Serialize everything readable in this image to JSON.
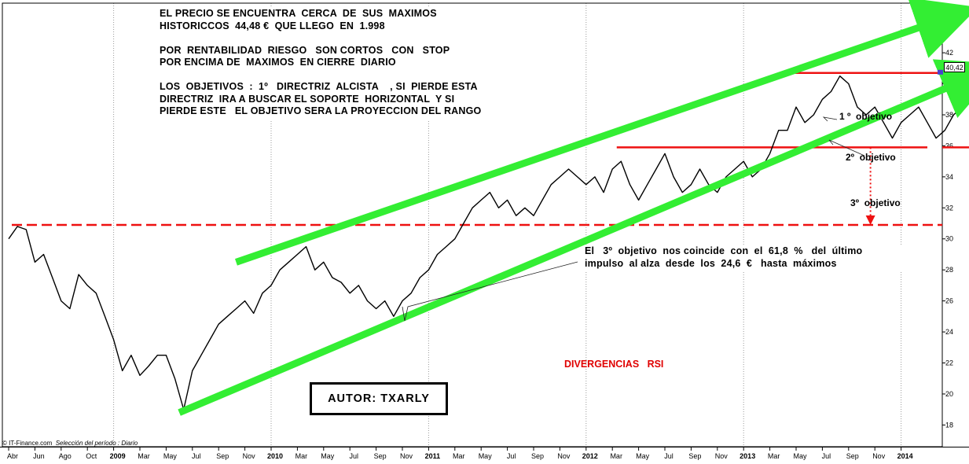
{
  "chart_data": {
    "type": "line",
    "title": "",
    "xlabel": "",
    "ylabel": "",
    "ylim": [
      16.6,
      45.2
    ],
    "y_axis_side": "right",
    "y_ticks": [
      18,
      20,
      22,
      24,
      26,
      28,
      30,
      32,
      34,
      36,
      38,
      40,
      42,
      44
    ],
    "x_ticks": [
      {
        "label": "Abr",
        "bold": false
      },
      {
        "label": "Jun",
        "bold": false
      },
      {
        "label": "Ago",
        "bold": false
      },
      {
        "label": "Oct",
        "bold": false
      },
      {
        "label": "2009",
        "bold": true
      },
      {
        "label": "Mar",
        "bold": false
      },
      {
        "label": "May",
        "bold": false
      },
      {
        "label": "Jul",
        "bold": false
      },
      {
        "label": "Sep",
        "bold": false
      },
      {
        "label": "Nov",
        "bold": false
      },
      {
        "label": "2010",
        "bold": true
      },
      {
        "label": "Mar",
        "bold": false
      },
      {
        "label": "May",
        "bold": false
      },
      {
        "label": "Jul",
        "bold": false
      },
      {
        "label": "Sep",
        "bold": false
      },
      {
        "label": "Nov",
        "bold": false
      },
      {
        "label": "2011",
        "bold": true
      },
      {
        "label": "Mar",
        "bold": false
      },
      {
        "label": "May",
        "bold": false
      },
      {
        "label": "Jul",
        "bold": false
      },
      {
        "label": "Sep",
        "bold": false
      },
      {
        "label": "Nov",
        "bold": false
      },
      {
        "label": "2012",
        "bold": true
      },
      {
        "label": "Mar",
        "bold": false
      },
      {
        "label": "May",
        "bold": false
      },
      {
        "label": "Jul",
        "bold": false
      },
      {
        "label": "Sep",
        "bold": false
      },
      {
        "label": "Nov",
        "bold": false
      },
      {
        "label": "2013",
        "bold": true
      },
      {
        "label": "Mar",
        "bold": false
      },
      {
        "label": "May",
        "bold": false
      },
      {
        "label": "Jul",
        "bold": false
      },
      {
        "label": "Sep",
        "bold": false
      },
      {
        "label": "Nov",
        "bold": false
      },
      {
        "label": "2014",
        "bold": true
      }
    ],
    "grid": "vertical dotted lines at year starts",
    "price_series": {
      "name": "",
      "color": "#000000",
      "points": [
        [
          0,
          30.0
        ],
        [
          1,
          30.8
        ],
        [
          2,
          30.6
        ],
        [
          3,
          28.5
        ],
        [
          4,
          29.0
        ],
        [
          5,
          27.5
        ],
        [
          6,
          26.0
        ],
        [
          7,
          25.5
        ],
        [
          8,
          27.7
        ],
        [
          9,
          27.0
        ],
        [
          10,
          26.5
        ],
        [
          11,
          25.0
        ],
        [
          12,
          23.5
        ],
        [
          13,
          21.5
        ],
        [
          14,
          22.5
        ],
        [
          15,
          21.2
        ],
        [
          16,
          21.8
        ],
        [
          17,
          22.5
        ],
        [
          18,
          22.5
        ],
        [
          19,
          21.0
        ],
        [
          20,
          19.0
        ],
        [
          21,
          21.5
        ],
        [
          22,
          22.5
        ],
        [
          23,
          23.5
        ],
        [
          24,
          24.5
        ],
        [
          25,
          25.0
        ],
        [
          26,
          25.5
        ],
        [
          27,
          26.0
        ],
        [
          28,
          25.2
        ],
        [
          29,
          26.5
        ],
        [
          30,
          27.0
        ],
        [
          31,
          28.0
        ],
        [
          32,
          28.5
        ],
        [
          33,
          29.0
        ],
        [
          34,
          29.5
        ],
        [
          35,
          28.0
        ],
        [
          36,
          28.5
        ],
        [
          37,
          27.5
        ],
        [
          38,
          27.2
        ],
        [
          39,
          26.5
        ],
        [
          40,
          27.0
        ],
        [
          41,
          26.0
        ],
        [
          42,
          25.5
        ],
        [
          43,
          26.0
        ],
        [
          44,
          25.0
        ],
        [
          45,
          26.0
        ],
        [
          46,
          26.5
        ],
        [
          47,
          27.5
        ],
        [
          48,
          28.0
        ],
        [
          49,
          29.0
        ],
        [
          50,
          29.5
        ],
        [
          51,
          30.0
        ],
        [
          52,
          31.0
        ],
        [
          53,
          32.0
        ],
        [
          54,
          32.5
        ],
        [
          55,
          33.0
        ],
        [
          56,
          32.0
        ],
        [
          57,
          32.5
        ],
        [
          58,
          31.5
        ],
        [
          59,
          32.0
        ],
        [
          60,
          31.5
        ],
        [
          61,
          32.5
        ],
        [
          62,
          33.5
        ],
        [
          63,
          34.0
        ],
        [
          64,
          34.5
        ],
        [
          65,
          34.0
        ],
        [
          66,
          33.5
        ],
        [
          67,
          34.0
        ],
        [
          68,
          33.0
        ],
        [
          69,
          34.5
        ],
        [
          70,
          35.0
        ],
        [
          71,
          33.5
        ],
        [
          72,
          32.5
        ],
        [
          73,
          33.5
        ],
        [
          74,
          34.5
        ],
        [
          75,
          35.5
        ],
        [
          76,
          34.0
        ],
        [
          77,
          33.0
        ],
        [
          78,
          33.5
        ],
        [
          79,
          34.5
        ],
        [
          80,
          33.5
        ],
        [
          81,
          33.0
        ],
        [
          82,
          34.0
        ],
        [
          83,
          34.5
        ],
        [
          84,
          35.0
        ],
        [
          85,
          34.0
        ],
        [
          86,
          34.5
        ],
        [
          87,
          35.5
        ],
        [
          88,
          37.0
        ],
        [
          89,
          37.0
        ],
        [
          90,
          38.5
        ],
        [
          91,
          37.5
        ],
        [
          92,
          38.0
        ],
        [
          93,
          39.0
        ],
        [
          94,
          39.5
        ],
        [
          95,
          40.5
        ],
        [
          96,
          40.0
        ],
        [
          97,
          38.5
        ],
        [
          98,
          38.0
        ],
        [
          99,
          38.5
        ],
        [
          100,
          37.5
        ],
        [
          101,
          36.5
        ],
        [
          102,
          37.5
        ],
        [
          103,
          38.0
        ],
        [
          104,
          38.5
        ],
        [
          105,
          37.5
        ],
        [
          106,
          36.5
        ],
        [
          107,
          37.0
        ],
        [
          108,
          38.0
        ],
        [
          109,
          38.5
        ],
        [
          110,
          39.0
        ],
        [
          111,
          39.5
        ],
        [
          112,
          40.42
        ]
      ]
    },
    "series": [
      {
        "kind": "trendline",
        "color": "#33ee33",
        "from": [
          26.0,
          28.5
        ],
        "to": [
          107,
          44.2
        ],
        "arrow": true
      },
      {
        "kind": "trendline",
        "color": "#33ee33",
        "from": [
          19.5,
          18.8
        ],
        "to": [
          110,
          40.4
        ],
        "arrow": true
      },
      {
        "kind": "hline",
        "color": "#ee1111",
        "style": "dashed",
        "y": 30.9
      },
      {
        "kind": "hline",
        "color": "#ee1111",
        "style": "solid",
        "y": 40.7,
        "x_from": 89,
        "x_to": 114
      },
      {
        "kind": "hline",
        "color": "#ee1111",
        "style": "solid",
        "y": 35.9,
        "x_from": 69.5,
        "x_to": 105
      },
      {
        "kind": "hline",
        "color": "#ee1111",
        "style": "solid",
        "y": 35.9,
        "x_from": 111,
        "x_to": 115
      },
      {
        "kind": "projection",
        "color": "#ee1111",
        "style": "dotted",
        "x": 98.5,
        "from": 35.9,
        "to": 30.9
      }
    ],
    "last_price_label": "40,42",
    "annotations": [
      {
        "text": "1 º  objetivo"
      },
      {
        "text": "2º  objetivo"
      },
      {
        "text": "3º  objetivo"
      }
    ]
  },
  "notes": {
    "top": [
      "EL PRECIO SE ENCUENTRA  CERCA  DE  SUS  MAXIMOS",
      "HISTORICCOS  44,48 €  QUE LLEGO  EN  1.998",
      "",
      "POR  RENTABILIDAD  RIESGO   SON CORTOS   CON   STOP",
      "POR ENCIMA DE  MAXIMOS  EN CIERRE  DIARIO",
      "",
      "LOS  OBJETIVOS  :  1º   DIRECTRIZ  ALCISTA    , SI  PIERDE ESTA",
      "DIRECTRIZ  IRA A BUSCAR EL SOPORTE  HORIZONTAL  Y SI",
      "PIERDE ESTE   EL OBJETIVO SERA LA PROYECCION DEL RANGO"
    ],
    "fib": [
      "El   3º  objetivo  nos coincide  con  el  61,8  %   del  último",
      "impulso  al alza  desde  los  24,6  €   hasta  máximos"
    ],
    "rsi": "DIVERGENCIAS   RSI",
    "author": "AUTOR: TXARLY"
  },
  "credit": {
    "source": "© IT-Finance.com",
    "period": "Selección del período : Diario"
  },
  "colors": {
    "trend": "#33ee33",
    "levels": "#ee1111",
    "price": "#000000",
    "marker": "#4b3fd0"
  }
}
